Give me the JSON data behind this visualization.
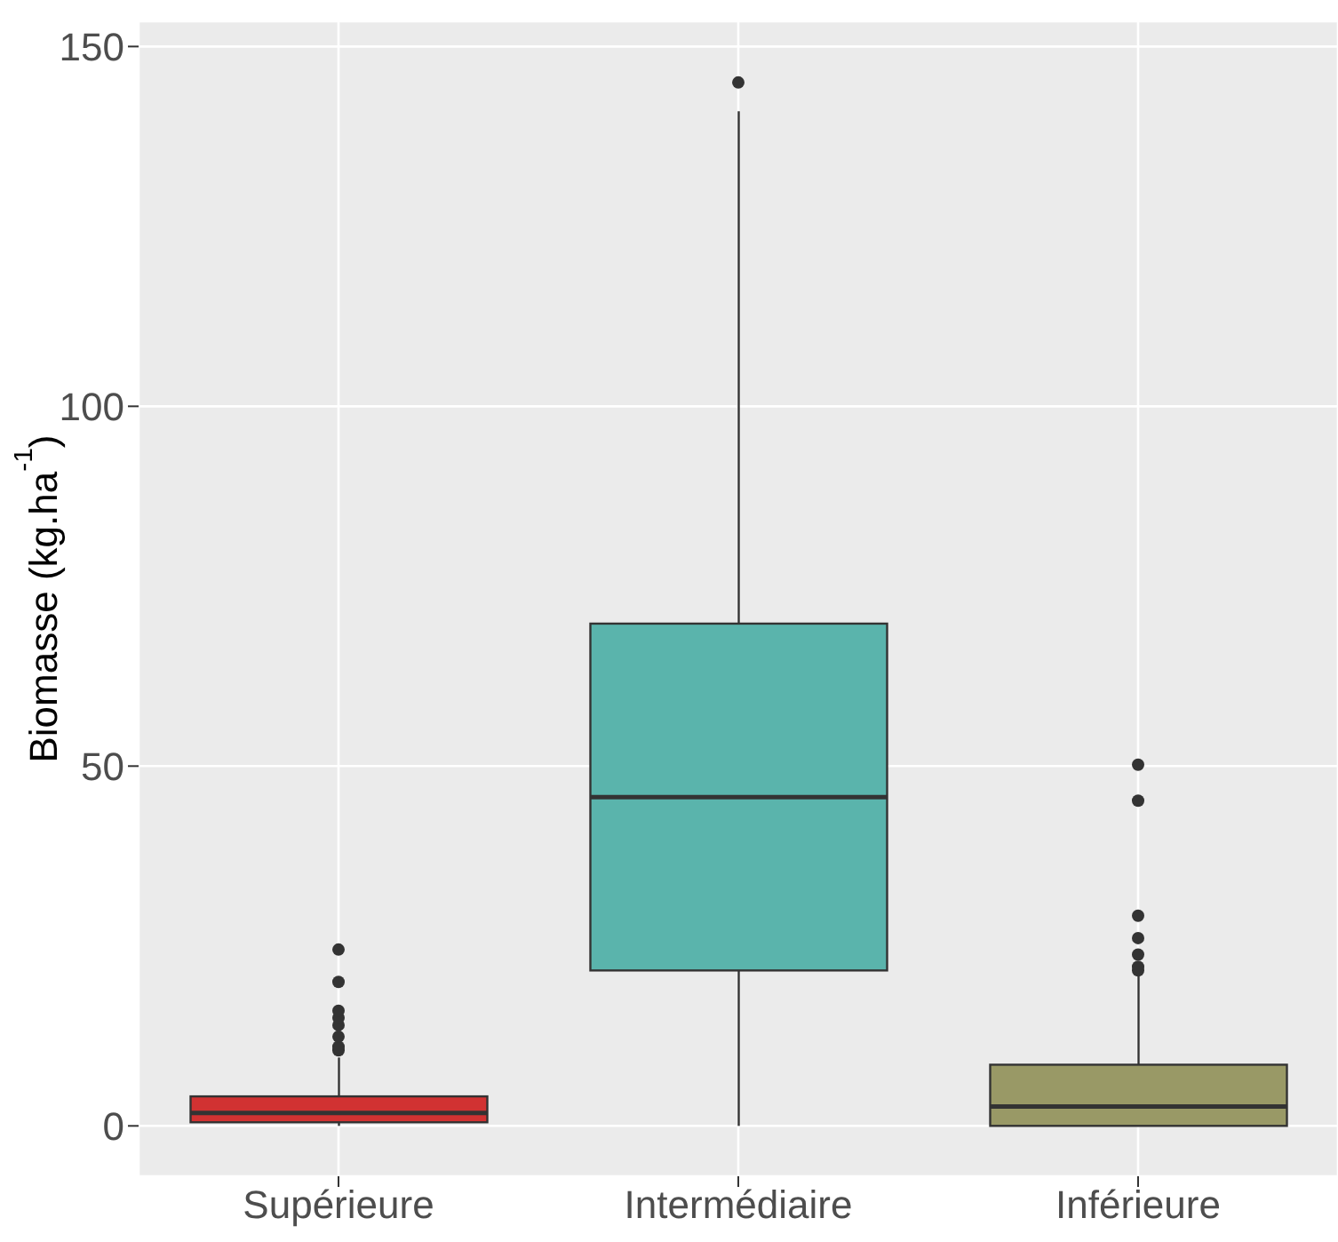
{
  "chart_data": {
    "type": "box",
    "ylabel": "Biomasse (kg.ha$^{-1}$)",
    "categories": [
      "Supérieure",
      "Intermédiaire",
      "Inférieure"
    ],
    "colors": [
      "#d13232",
      "#5ab4ac",
      "#999966"
    ],
    "boxes": [
      {
        "low": 0,
        "q1": 0.5,
        "median": 1.8,
        "q3": 4.1,
        "high": 9.5,
        "outliers": [
          10.5,
          11,
          12.4,
          14,
          15,
          16,
          20,
          24.5
        ]
      },
      {
        "low": 0,
        "q1": 21.6,
        "median": 45.7,
        "q3": 69.8,
        "high": 141,
        "outliers": [
          145
        ]
      },
      {
        "low": 0,
        "q1": 0,
        "median": 2.7,
        "q3": 8.5,
        "high": 21,
        "outliers": [
          21.6,
          22.1,
          23.8,
          26.1,
          29.2,
          45.2,
          50.2
        ]
      }
    ],
    "ylim": [
      -7,
      153.5
    ],
    "yticks": [
      0,
      50,
      100,
      150
    ],
    "grid": true
  }
}
